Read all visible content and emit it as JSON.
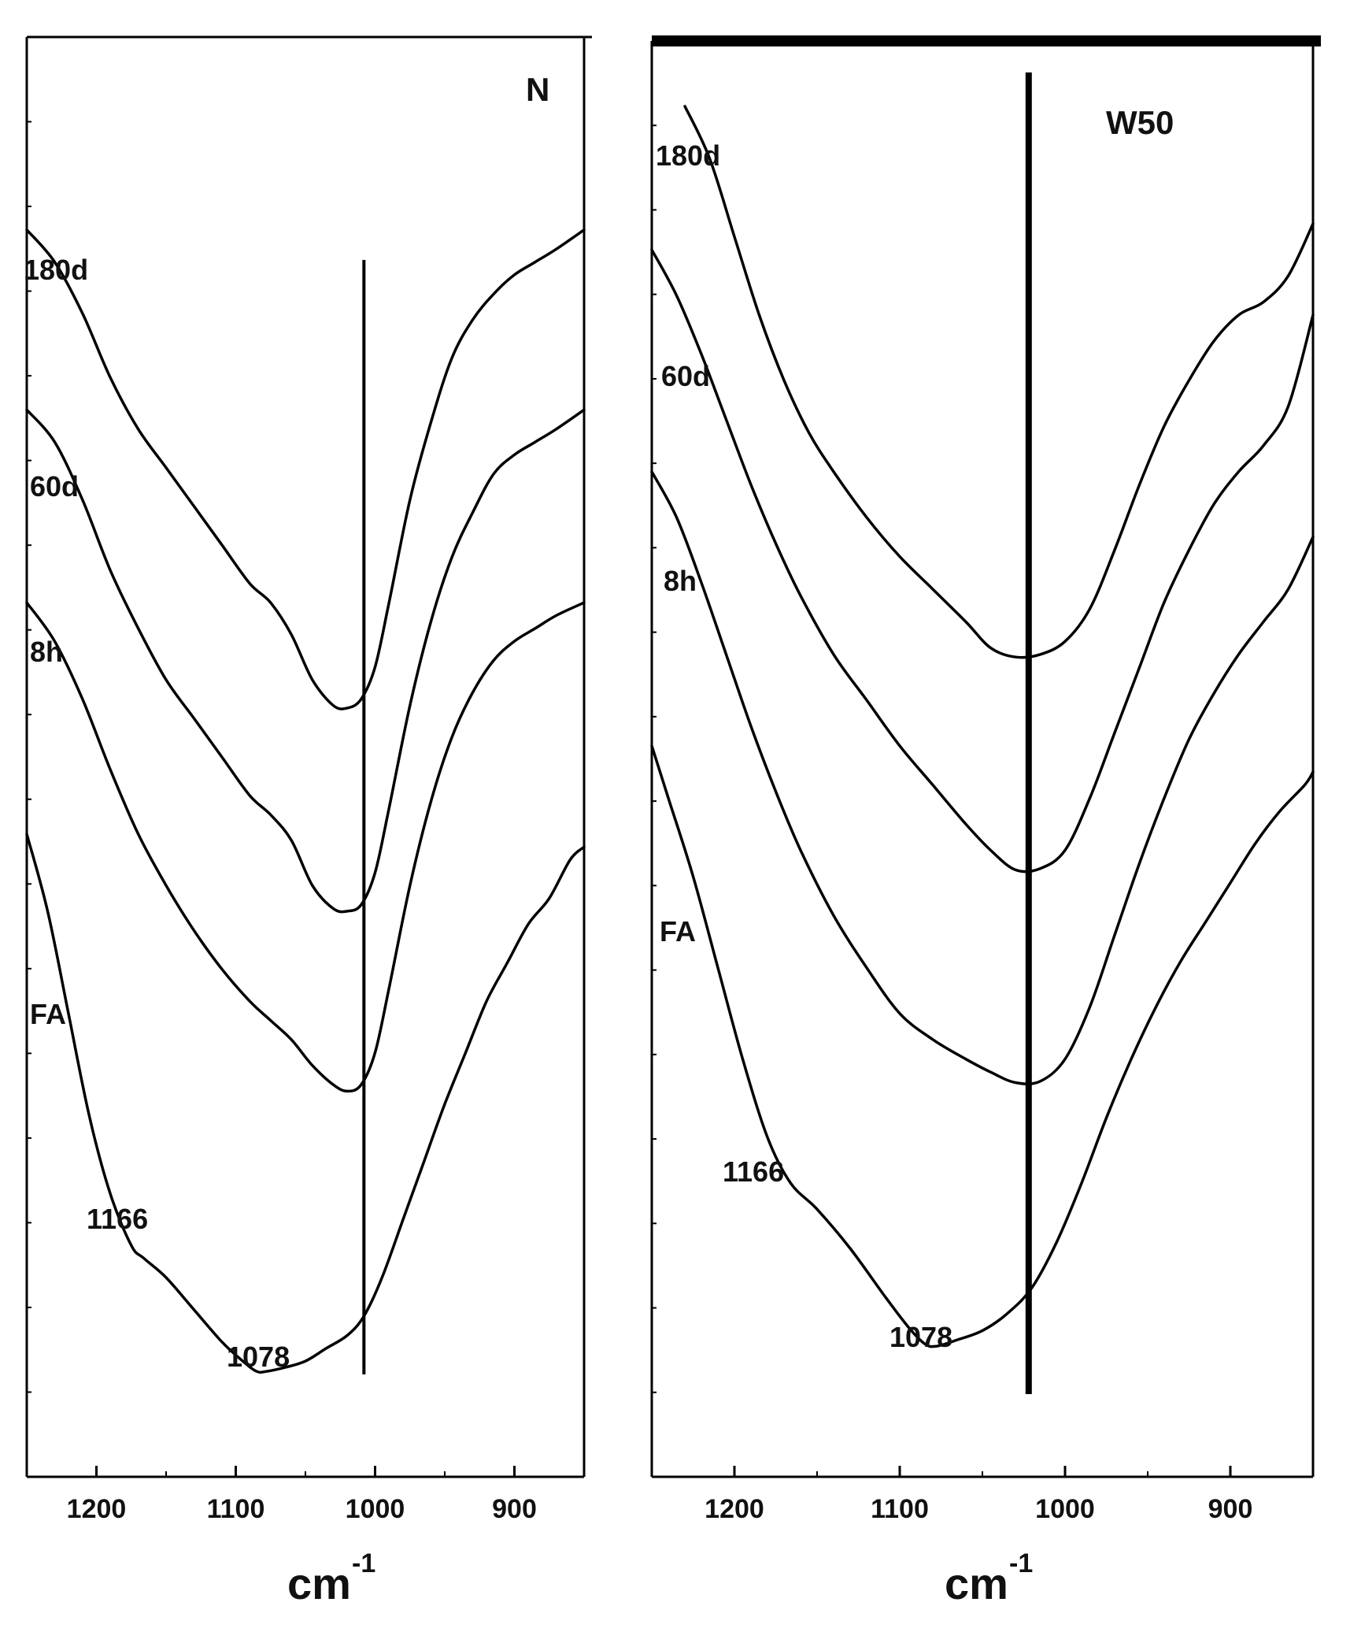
{
  "chart_data": [
    {
      "type": "line",
      "panel": "N",
      "x_unit": "cm",
      "x_unit_sup": "-1",
      "xlim": [
        1250,
        850
      ],
      "x_ticks": [
        1200,
        1100,
        1000,
        900
      ],
      "marker_line_x": 1008,
      "series": [
        {
          "name": "180d",
          "x": [
            1250,
            1230,
            1210,
            1190,
            1170,
            1150,
            1130,
            1110,
            1090,
            1075,
            1060,
            1045,
            1030,
            1020,
            1010,
            1000,
            990,
            975,
            960,
            945,
            930,
            915,
            900,
            885,
            870,
            850
          ],
          "y": [
            9.7,
            9.45,
            9.05,
            8.55,
            8.15,
            7.85,
            7.55,
            7.25,
            6.95,
            6.8,
            6.55,
            6.2,
            6.0,
            5.98,
            6.05,
            6.3,
            6.8,
            7.6,
            8.2,
            8.7,
            9.0,
            9.2,
            9.35,
            9.45,
            9.55,
            9.7
          ]
        },
        {
          "name": "60d",
          "x": [
            1250,
            1230,
            1210,
            1190,
            1170,
            1150,
            1130,
            1110,
            1090,
            1075,
            1060,
            1045,
            1030,
            1020,
            1010,
            1000,
            990,
            975,
            960,
            945,
            930,
            915,
            900,
            885,
            870,
            850
          ],
          "y": [
            8.3,
            8.05,
            7.6,
            7.05,
            6.6,
            6.2,
            5.9,
            5.6,
            5.3,
            5.15,
            4.95,
            4.6,
            4.42,
            4.4,
            4.45,
            4.7,
            5.2,
            6.0,
            6.65,
            7.15,
            7.5,
            7.8,
            7.95,
            8.05,
            8.15,
            8.3
          ]
        },
        {
          "name": "8h",
          "x": [
            1250,
            1230,
            1210,
            1190,
            1170,
            1150,
            1130,
            1110,
            1090,
            1075,
            1060,
            1045,
            1030,
            1020,
            1010,
            1000,
            990,
            975,
            960,
            945,
            930,
            915,
            900,
            885,
            870,
            850
          ],
          "y": [
            6.8,
            6.5,
            6.05,
            5.5,
            5.0,
            4.6,
            4.25,
            3.95,
            3.7,
            3.55,
            3.4,
            3.2,
            3.05,
            3.0,
            3.05,
            3.3,
            3.8,
            4.6,
            5.25,
            5.75,
            6.1,
            6.35,
            6.5,
            6.6,
            6.7,
            6.8
          ]
        },
        {
          "name": "FA",
          "x": [
            1250,
            1235,
            1220,
            1205,
            1190,
            1175,
            1166,
            1150,
            1130,
            1110,
            1095,
            1085,
            1078,
            1065,
            1050,
            1035,
            1020,
            1008,
            995,
            980,
            965,
            950,
            935,
            920,
            905,
            890,
            875,
            860,
            850
          ],
          "y": [
            5.0,
            4.4,
            3.6,
            2.8,
            2.2,
            1.8,
            1.7,
            1.55,
            1.3,
            1.05,
            0.9,
            0.82,
            0.82,
            0.85,
            0.9,
            1.0,
            1.1,
            1.25,
            1.55,
            2.0,
            2.45,
            2.9,
            3.3,
            3.7,
            4.0,
            4.3,
            4.5,
            4.8,
            4.9
          ]
        }
      ],
      "annotations": [
        "1166",
        "1078"
      ]
    },
    {
      "type": "line",
      "panel": "W50",
      "x_unit": "cm",
      "x_unit_sup": "-1",
      "xlim": [
        1250,
        850
      ],
      "x_ticks": [
        1200,
        1100,
        1000,
        900
      ],
      "marker_line_x": 1022,
      "series": [
        {
          "name": "180d",
          "x": [
            1230,
            1215,
            1200,
            1185,
            1170,
            1155,
            1140,
            1120,
            1100,
            1080,
            1060,
            1045,
            1030,
            1015,
            1000,
            985,
            970,
            955,
            940,
            925,
            910,
            895,
            880,
            865,
            850
          ],
          "y": [
            10.5,
            10.1,
            9.5,
            8.9,
            8.4,
            8.0,
            7.7,
            7.35,
            7.05,
            6.8,
            6.55,
            6.35,
            6.28,
            6.3,
            6.4,
            6.65,
            7.1,
            7.6,
            8.05,
            8.4,
            8.7,
            8.9,
            9.0,
            9.2,
            9.6
          ]
        },
        {
          "name": "60d",
          "x": [
            1250,
            1235,
            1220,
            1205,
            1190,
            1175,
            1160,
            1140,
            1120,
            1100,
            1080,
            1060,
            1045,
            1030,
            1015,
            1000,
            985,
            970,
            955,
            940,
            925,
            910,
            895,
            880,
            865,
            850
          ],
          "y": [
            9.4,
            9.05,
            8.6,
            8.1,
            7.6,
            7.15,
            6.75,
            6.3,
            5.95,
            5.6,
            5.3,
            5.0,
            4.8,
            4.65,
            4.66,
            4.8,
            5.2,
            5.7,
            6.2,
            6.7,
            7.1,
            7.45,
            7.7,
            7.9,
            8.2,
            8.9
          ]
        },
        {
          "name": "8h",
          "x": [
            1250,
            1235,
            1220,
            1205,
            1190,
            1175,
            1160,
            1140,
            1120,
            1100,
            1080,
            1060,
            1045,
            1030,
            1015,
            1000,
            985,
            970,
            955,
            940,
            925,
            910,
            895,
            880,
            865,
            850
          ],
          "y": [
            7.7,
            7.35,
            6.85,
            6.3,
            5.75,
            5.25,
            4.8,
            4.3,
            3.9,
            3.55,
            3.35,
            3.2,
            3.1,
            3.02,
            3.03,
            3.2,
            3.6,
            4.15,
            4.7,
            5.2,
            5.65,
            6.0,
            6.3,
            6.55,
            6.8,
            7.2
          ]
        },
        {
          "name": "FA",
          "x": [
            1250,
            1240,
            1225,
            1210,
            1195,
            1180,
            1166,
            1150,
            1130,
            1110,
            1095,
            1085,
            1078,
            1065,
            1050,
            1035,
            1020,
            1005,
            990,
            975,
            960,
            945,
            930,
            915,
            900,
            885,
            870,
            855,
            850
          ],
          "y": [
            5.6,
            5.2,
            4.6,
            3.9,
            3.2,
            2.6,
            2.25,
            2.05,
            1.75,
            1.4,
            1.15,
            1.02,
            1.0,
            1.05,
            1.12,
            1.25,
            1.45,
            1.8,
            2.25,
            2.75,
            3.2,
            3.6,
            3.95,
            4.25,
            4.55,
            4.85,
            5.1,
            5.3,
            5.4
          ]
        }
      ],
      "annotations": [
        "1166",
        "1078"
      ]
    }
  ]
}
